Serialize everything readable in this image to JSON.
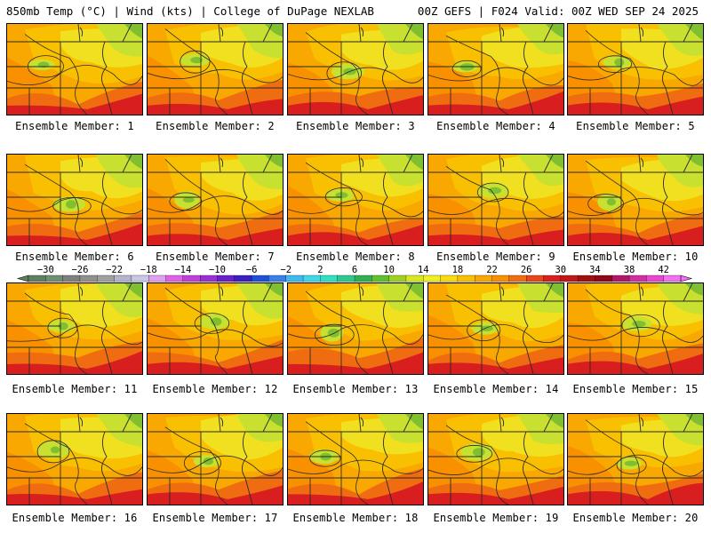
{
  "header": {
    "left_title": "850mb Temp (°C) | Wind (kts) | College of DuPage NEXLAB",
    "right_title": "00Z GEFS | F024 Valid: 00Z WED SEP 24 2025"
  },
  "panels": [
    {
      "label": "Ensemble Member: 1"
    },
    {
      "label": "Ensemble Member: 2"
    },
    {
      "label": "Ensemble Member: 3"
    },
    {
      "label": "Ensemble Member: 4"
    },
    {
      "label": "Ensemble Member: 5"
    },
    {
      "label": "Ensemble Member: 6"
    },
    {
      "label": "Ensemble Member: 7"
    },
    {
      "label": "Ensemble Member: 8"
    },
    {
      "label": "Ensemble Member: 9"
    },
    {
      "label": "Ensemble Member: 10"
    },
    {
      "label": "Ensemble Member: 11"
    },
    {
      "label": "Ensemble Member: 12"
    },
    {
      "label": "Ensemble Member: 13"
    },
    {
      "label": "Ensemble Member: 14"
    },
    {
      "label": "Ensemble Member: 15"
    },
    {
      "label": "Ensemble Member: 16"
    },
    {
      "label": "Ensemble Member: 17"
    },
    {
      "label": "Ensemble Member: 18"
    },
    {
      "label": "Ensemble Member: 19"
    },
    {
      "label": "Ensemble Member: 20"
    }
  ],
  "colorbar": {
    "min": -32,
    "max": 44,
    "step": 2,
    "tick_labels": [
      "-30",
      "-26",
      "-22",
      "-18",
      "-14",
      "-10",
      "-6",
      "-2",
      "2",
      "6",
      "10",
      "14",
      "18",
      "22",
      "26",
      "30",
      "34",
      "38",
      "42"
    ],
    "colors": [
      "#5f7f5f",
      "#6f8f73",
      "#7f7f7f",
      "#909090",
      "#a0a0a0",
      "#b4b4cc",
      "#c8c8e6",
      "#e0a0f0",
      "#e060e8",
      "#c040d8",
      "#9a30d0",
      "#6a20c8",
      "#3a20c0",
      "#2050d8",
      "#3a80e8",
      "#40b8f0",
      "#40d8e8",
      "#30e0c0",
      "#30c890",
      "#30b050",
      "#60c030",
      "#a0d020",
      "#d8e820",
      "#f0f020",
      "#f8dc10",
      "#f8c000",
      "#f8a800",
      "#f89000",
      "#f06c10",
      "#e84818",
      "#d82020",
      "#c01818",
      "#a01010",
      "#900818",
      "#b01868",
      "#d030a0",
      "#e848d0",
      "#f070f0"
    ]
  },
  "map_colors": {
    "hot": "#d81e1e",
    "orange_red": "#f06c10",
    "orange": "#f89000",
    "light_orange": "#f8a800",
    "gold": "#f8c000",
    "yellow": "#f0e020",
    "lime": "#c8e030",
    "green": "#80c030",
    "dark_green": "#5aa838",
    "lines": "#2a2a2a"
  }
}
